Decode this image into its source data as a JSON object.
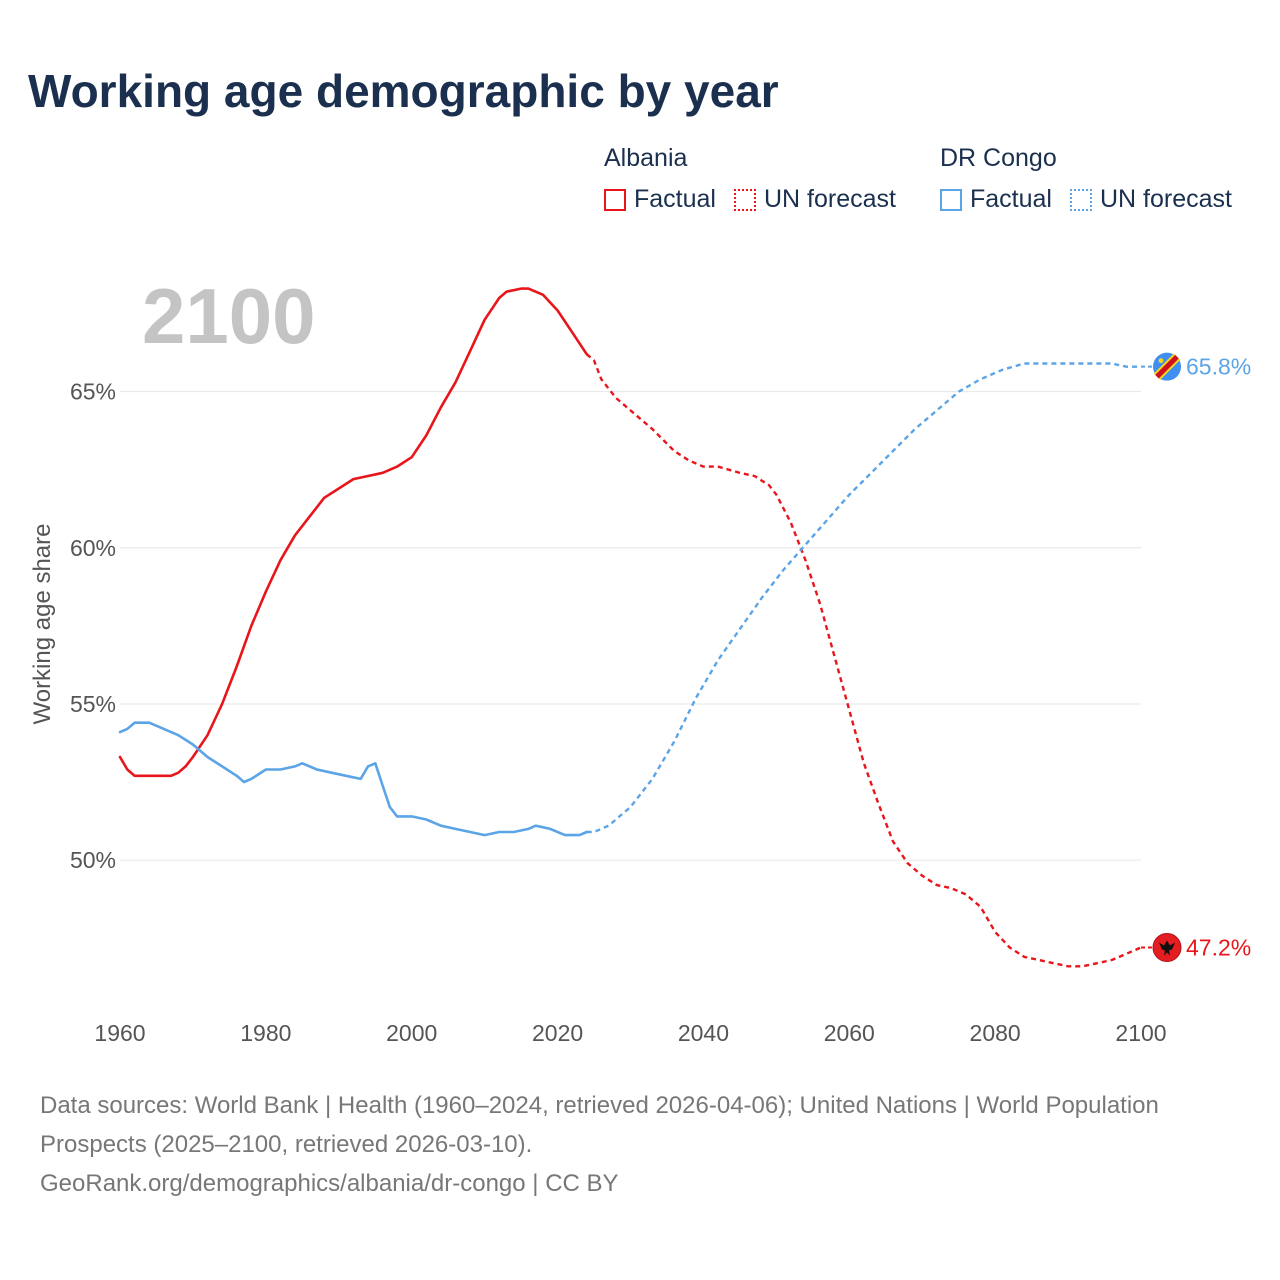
{
  "title": "Working age demographic by year",
  "legend": {
    "albania_label": "Albania",
    "drc_label": "DR Congo",
    "factual_label": "Factual",
    "forecast_label": "UN forecast"
  },
  "colors": {
    "albania": "#e8161b",
    "drc": "#5ba4e6",
    "grid": "#e6e6e6",
    "axis_text": "#555555",
    "title": "#1b2f4e",
    "year_watermark": "#c4c4c4"
  },
  "footer": {
    "line1": "Data sources: World Bank | Health (1960–2024, retrieved 2026-04-06); United Nations | World Population Prospects (2025–2100, retrieved 2026-03-10).",
    "line2": "GeoRank.org/demographics/albania/dr-congo | CC BY"
  },
  "chart_data": {
    "type": "line",
    "title": "Working age demographic by year",
    "xlabel": "",
    "ylabel": "Working age share",
    "xlim": [
      1960,
      2100
    ],
    "ylim": [
      45.2,
      69.6
    ],
    "x_ticks": [
      1960,
      1980,
      2000,
      2020,
      2040,
      2060,
      2080,
      2100
    ],
    "x_tick_labels": [
      "1960",
      "1980",
      "2000",
      "2020",
      "2040",
      "2060",
      "2080",
      "2100"
    ],
    "y_ticks": [
      50,
      55,
      60,
      65
    ],
    "y_tick_labels": [
      "50%",
      "55%",
      "60%",
      "65%"
    ],
    "grid": true,
    "current_year": "2100",
    "factual_until": 2024,
    "series": [
      {
        "name": "Albania",
        "color_key": "albania",
        "end_label": "47.2%",
        "end_icon": "albania-flag-icon",
        "points": [
          [
            1960,
            53.3
          ],
          [
            1961,
            52.9
          ],
          [
            1962,
            52.7
          ],
          [
            1964,
            52.7
          ],
          [
            1967,
            52.7
          ],
          [
            1968,
            52.8
          ],
          [
            1969,
            53.0
          ],
          [
            1970,
            53.3
          ],
          [
            1972,
            54.0
          ],
          [
            1974,
            55.0
          ],
          [
            1976,
            56.2
          ],
          [
            1978,
            57.5
          ],
          [
            1980,
            58.6
          ],
          [
            1982,
            59.6
          ],
          [
            1984,
            60.4
          ],
          [
            1986,
            61.0
          ],
          [
            1988,
            61.6
          ],
          [
            1990,
            61.9
          ],
          [
            1992,
            62.2
          ],
          [
            1994,
            62.3
          ],
          [
            1996,
            62.4
          ],
          [
            1998,
            62.6
          ],
          [
            2000,
            62.9
          ],
          [
            2002,
            63.6
          ],
          [
            2004,
            64.5
          ],
          [
            2006,
            65.3
          ],
          [
            2008,
            66.3
          ],
          [
            2010,
            67.3
          ],
          [
            2012,
            68.0
          ],
          [
            2013,
            68.2
          ],
          [
            2015,
            68.3
          ],
          [
            2016,
            68.3
          ],
          [
            2018,
            68.1
          ],
          [
            2020,
            67.6
          ],
          [
            2022,
            66.9
          ],
          [
            2024,
            66.2
          ],
          [
            2025,
            66.0
          ],
          [
            2026,
            65.4
          ],
          [
            2028,
            64.8
          ],
          [
            2030,
            64.4
          ],
          [
            2033,
            63.8
          ],
          [
            2036,
            63.1
          ],
          [
            2038,
            62.8
          ],
          [
            2040,
            62.6
          ],
          [
            2042,
            62.6
          ],
          [
            2045,
            62.4
          ],
          [
            2047,
            62.3
          ],
          [
            2049,
            62.0
          ],
          [
            2050,
            61.7
          ],
          [
            2052,
            60.8
          ],
          [
            2054,
            59.6
          ],
          [
            2056,
            58.2
          ],
          [
            2058,
            56.5
          ],
          [
            2060,
            54.8
          ],
          [
            2062,
            53.1
          ],
          [
            2064,
            51.8
          ],
          [
            2066,
            50.6
          ],
          [
            2068,
            49.9
          ],
          [
            2070,
            49.5
          ],
          [
            2072,
            49.2
          ],
          [
            2074,
            49.1
          ],
          [
            2076,
            48.9
          ],
          [
            2078,
            48.5
          ],
          [
            2080,
            47.7
          ],
          [
            2082,
            47.2
          ],
          [
            2084,
            46.9
          ],
          [
            2086,
            46.8
          ],
          [
            2088,
            46.7
          ],
          [
            2090,
            46.6
          ],
          [
            2092,
            46.6
          ],
          [
            2094,
            46.7
          ],
          [
            2096,
            46.8
          ],
          [
            2098,
            47.0
          ],
          [
            2100,
            47.2
          ]
        ]
      },
      {
        "name": "DR Congo",
        "color_key": "drc",
        "end_label": "65.8%",
        "end_icon": "dr-congo-flag-icon",
        "points": [
          [
            1960,
            54.1
          ],
          [
            1961,
            54.2
          ],
          [
            1962,
            54.4
          ],
          [
            1964,
            54.4
          ],
          [
            1966,
            54.2
          ],
          [
            1968,
            54.0
          ],
          [
            1970,
            53.7
          ],
          [
            1972,
            53.3
          ],
          [
            1974,
            53.0
          ],
          [
            1976,
            52.7
          ],
          [
            1977,
            52.5
          ],
          [
            1978,
            52.6
          ],
          [
            1980,
            52.9
          ],
          [
            1982,
            52.9
          ],
          [
            1984,
            53.0
          ],
          [
            1985,
            53.1
          ],
          [
            1987,
            52.9
          ],
          [
            1989,
            52.8
          ],
          [
            1991,
            52.7
          ],
          [
            1993,
            52.6
          ],
          [
            1994,
            53.0
          ],
          [
            1995,
            53.1
          ],
          [
            1996,
            52.4
          ],
          [
            1997,
            51.7
          ],
          [
            1998,
            51.4
          ],
          [
            2000,
            51.4
          ],
          [
            2002,
            51.3
          ],
          [
            2004,
            51.1
          ],
          [
            2006,
            51.0
          ],
          [
            2008,
            50.9
          ],
          [
            2010,
            50.8
          ],
          [
            2012,
            50.9
          ],
          [
            2014,
            50.9
          ],
          [
            2016,
            51.0
          ],
          [
            2017,
            51.1
          ],
          [
            2019,
            51.0
          ],
          [
            2021,
            50.8
          ],
          [
            2023,
            50.8
          ],
          [
            2024,
            50.9
          ],
          [
            2025,
            50.9
          ],
          [
            2027,
            51.1
          ],
          [
            2030,
            51.7
          ],
          [
            2033,
            52.6
          ],
          [
            2036,
            53.8
          ],
          [
            2039,
            55.2
          ],
          [
            2042,
            56.4
          ],
          [
            2045,
            57.4
          ],
          [
            2048,
            58.4
          ],
          [
            2051,
            59.3
          ],
          [
            2054,
            60.1
          ],
          [
            2057,
            60.9
          ],
          [
            2060,
            61.7
          ],
          [
            2063,
            62.4
          ],
          [
            2066,
            63.1
          ],
          [
            2069,
            63.8
          ],
          [
            2072,
            64.4
          ],
          [
            2075,
            65.0
          ],
          [
            2078,
            65.4
          ],
          [
            2081,
            65.7
          ],
          [
            2084,
            65.9
          ],
          [
            2090,
            65.9
          ],
          [
            2096,
            65.9
          ],
          [
            2098,
            65.8
          ],
          [
            2100,
            65.8
          ]
        ]
      }
    ]
  }
}
